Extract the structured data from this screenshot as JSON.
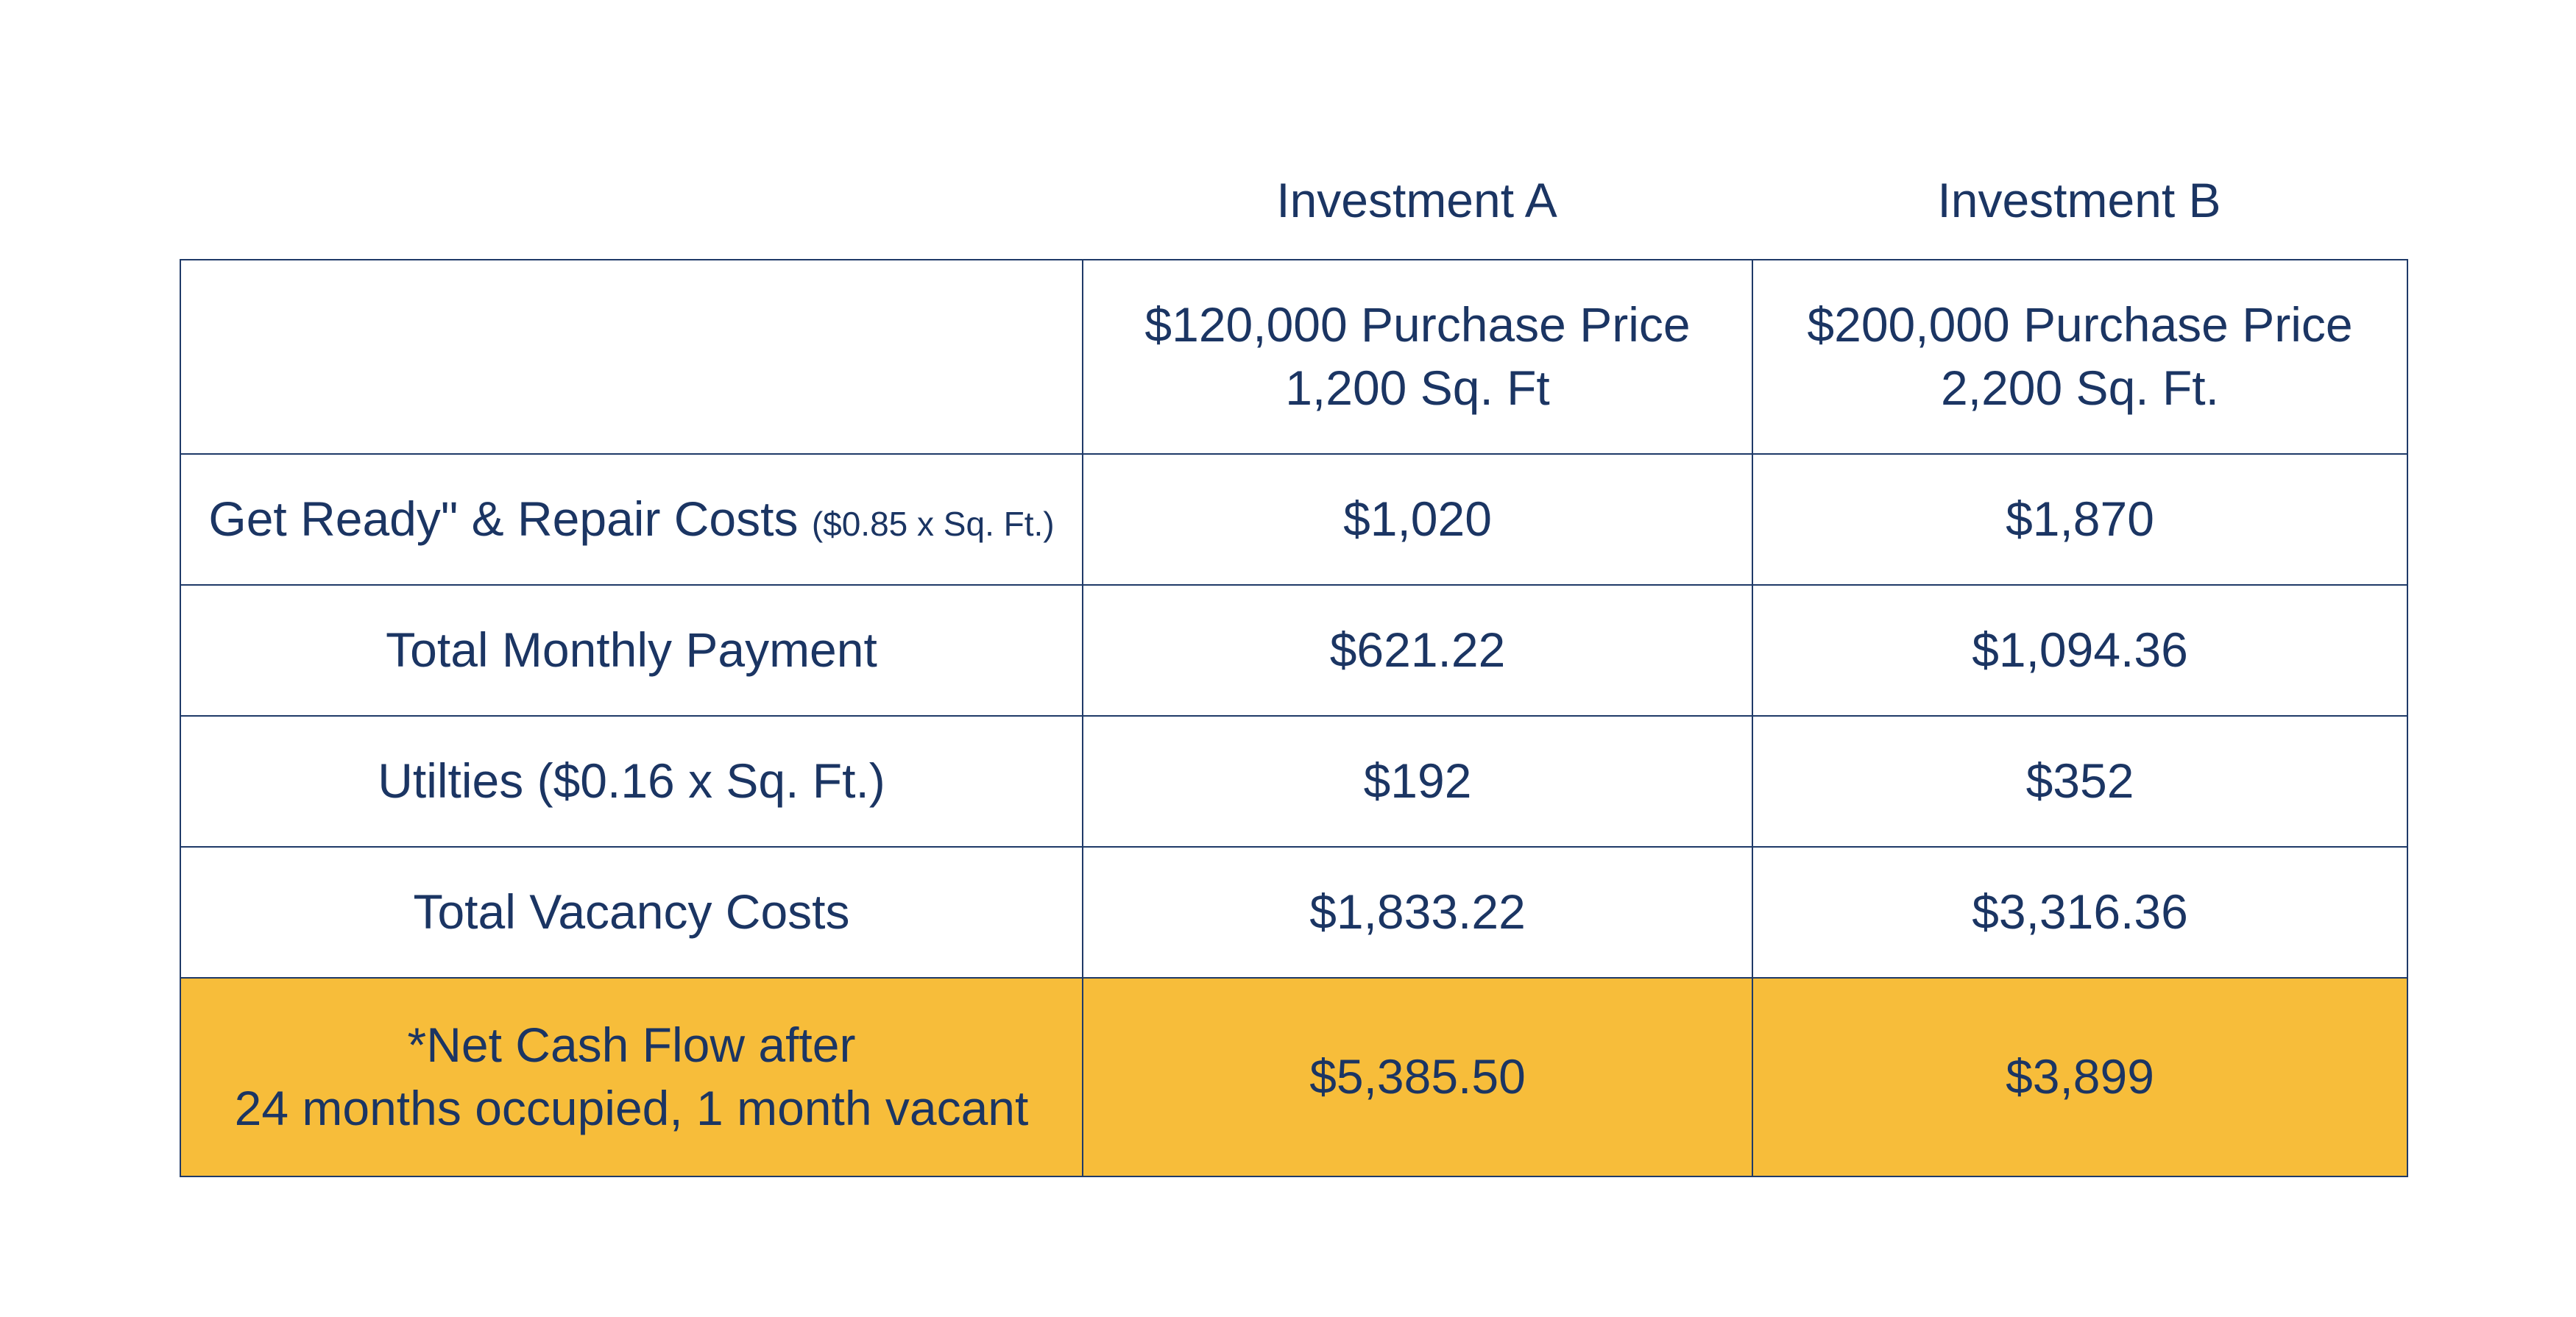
{
  "columns": {
    "a": "Investment A",
    "b": "Investment B"
  },
  "header_row": {
    "a_line1": "$120,000 Purchase Price",
    "a_line2": "1,200 Sq. Ft",
    "b_line1": "$200,000 Purchase Price",
    "b_line2": "2,200 Sq. Ft."
  },
  "rows": [
    {
      "label": "Get Ready\" & Repair Costs",
      "note": "($0.85 x Sq. Ft.)",
      "a": "$1,020",
      "b": "$1,870"
    },
    {
      "label": "Total Monthly Payment",
      "a": "$621.22",
      "b": "$1,094.36"
    },
    {
      "label": "Utilties ($0.16 x Sq. Ft.)",
      "a": "$192",
      "b": "$352"
    },
    {
      "label": "Total Vacancy Costs",
      "a": "$1,833.22",
      "b": "$3,316.36"
    }
  ],
  "net_row": {
    "label_line1": "*Net Cash Flow after",
    "label_line2": "24 months occupied, 1 month vacant",
    "a": "$5,385.50",
    "b": "$3,899"
  },
  "colors": {
    "text": "#1b3563",
    "border": "#1f3a68",
    "highlight": "#f7bd3a",
    "background": "#ffffff"
  }
}
